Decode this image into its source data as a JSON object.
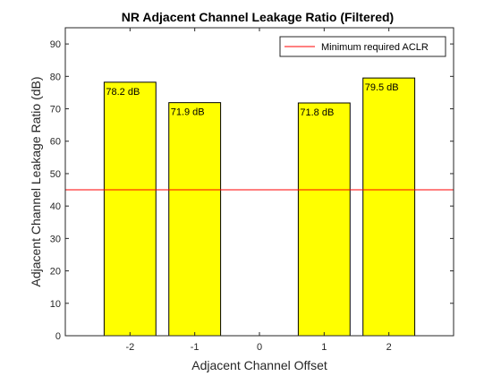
{
  "chart_data": {
    "type": "bar",
    "title": "NR Adjacent Channel Leakage Ratio (Filtered)",
    "xlabel": "Adjacent Channel Offset",
    "ylabel": "Adjacent Channel Leakage Ratio (dB)",
    "x": [
      -2,
      -1,
      1,
      2
    ],
    "values": [
      78.2,
      71.9,
      71.8,
      79.5
    ],
    "data_labels": [
      "78.2 dB",
      "71.9 dB",
      "71.8 dB",
      "79.5 dB"
    ],
    "xticks": [
      -2,
      -1,
      0,
      1,
      2
    ],
    "yticks": [
      0,
      10,
      20,
      30,
      40,
      50,
      60,
      70,
      80,
      90
    ],
    "xlim": [
      -3,
      3
    ],
    "ylim": [
      0,
      95
    ],
    "bar_color": "#FFFF00",
    "threshold": {
      "name": "Minimum required ACLR",
      "value": 45,
      "color": "#FF0000"
    },
    "legend_position": "top-right",
    "grid": false
  }
}
